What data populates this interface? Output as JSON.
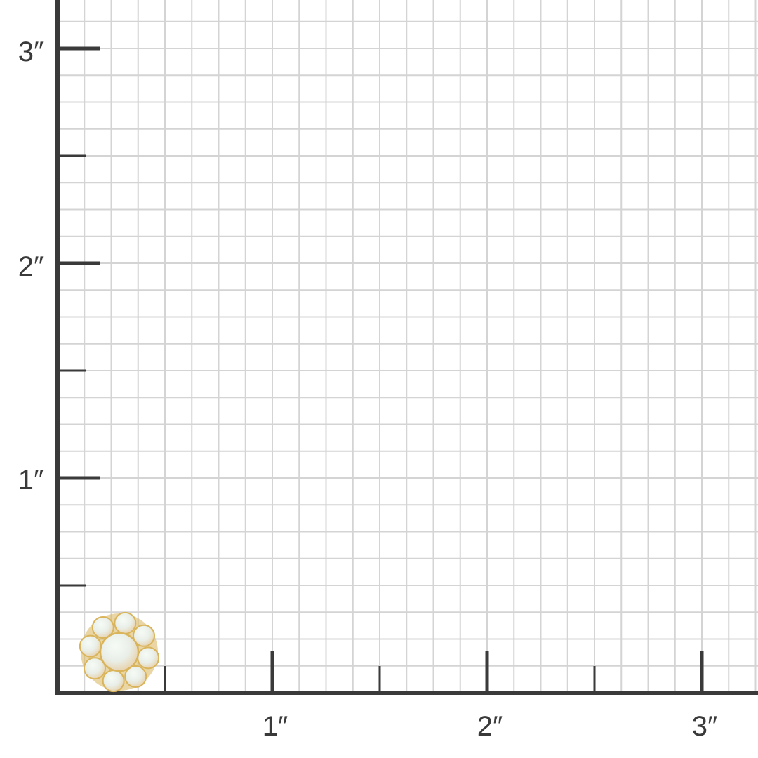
{
  "ruler": {
    "unit_mark": "″",
    "x_labels": [
      "1″",
      "2″",
      "3″"
    ],
    "y_labels": [
      "1″",
      "2″",
      "3″"
    ],
    "grid_divisions_per_inch": 8,
    "axis_color": "#3a3a3a",
    "grid_color": "#d4d4d4"
  },
  "product": {
    "type": "opal cluster earring",
    "stone_count": 9,
    "metal_color": "#d9b45a",
    "stone_color": "#e9efe8"
  }
}
